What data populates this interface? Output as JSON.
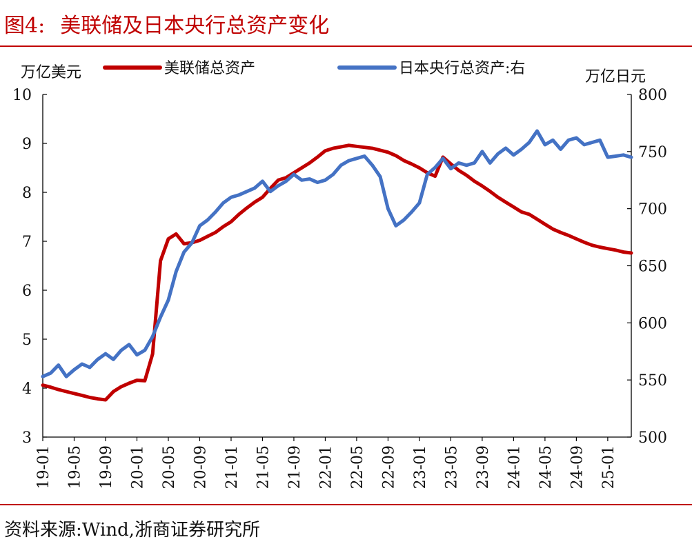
{
  "header": {
    "figure_label": "图4:",
    "title": "美联储及日本央行总资产变化"
  },
  "source": "资料来源:Wind,浙商证券研究所",
  "chart_data": {
    "type": "line",
    "y_left": {
      "label": "万亿美元",
      "range": [
        3,
        10
      ],
      "ticks": [
        "3",
        "4",
        "5",
        "6",
        "7",
        "8",
        "9",
        "10"
      ]
    },
    "y_right": {
      "label": "万亿日元",
      "range": [
        500,
        800
      ],
      "ticks": [
        "500",
        "550",
        "600",
        "650",
        "700",
        "750",
        "800"
      ]
    },
    "x_ticks": [
      "19-01",
      "19-05",
      "19-09",
      "20-01",
      "20-05",
      "20-09",
      "21-01",
      "21-05",
      "21-09",
      "22-01",
      "22-05",
      "22-09",
      "23-01",
      "23-05",
      "23-09",
      "24-01",
      "24-05",
      "24-09",
      "25-01"
    ],
    "x_range": [
      "2019-01",
      "2025-04"
    ],
    "legend_position": "top",
    "series": [
      {
        "name": "美联储总资产",
        "axis": "left",
        "color": "#c00000",
        "points": [
          [
            "2019-01",
            4.06
          ],
          [
            "2019-02",
            4.02
          ],
          [
            "2019-03",
            3.97
          ],
          [
            "2019-04",
            3.93
          ],
          [
            "2019-05",
            3.89
          ],
          [
            "2019-06",
            3.85
          ],
          [
            "2019-07",
            3.81
          ],
          [
            "2019-08",
            3.78
          ],
          [
            "2019-09",
            3.76
          ],
          [
            "2019-10",
            3.93
          ],
          [
            "2019-11",
            4.03
          ],
          [
            "2019-12",
            4.1
          ],
          [
            "2020-01",
            4.16
          ],
          [
            "2020-02",
            4.15
          ],
          [
            "2020-03",
            4.7
          ],
          [
            "2020-04",
            6.6
          ],
          [
            "2020-05",
            7.05
          ],
          [
            "2020-06",
            7.15
          ],
          [
            "2020-07",
            6.95
          ],
          [
            "2020-08",
            6.97
          ],
          [
            "2020-09",
            7.02
          ],
          [
            "2020-10",
            7.1
          ],
          [
            "2020-11",
            7.18
          ],
          [
            "2020-12",
            7.3
          ],
          [
            "2021-01",
            7.4
          ],
          [
            "2021-02",
            7.55
          ],
          [
            "2021-03",
            7.68
          ],
          [
            "2021-04",
            7.8
          ],
          [
            "2021-05",
            7.9
          ],
          [
            "2021-06",
            8.08
          ],
          [
            "2021-07",
            8.25
          ],
          [
            "2021-08",
            8.3
          ],
          [
            "2021-09",
            8.4
          ],
          [
            "2021-10",
            8.5
          ],
          [
            "2021-11",
            8.6
          ],
          [
            "2021-12",
            8.72
          ],
          [
            "2022-01",
            8.85
          ],
          [
            "2022-02",
            8.9
          ],
          [
            "2022-03",
            8.93
          ],
          [
            "2022-04",
            8.96
          ],
          [
            "2022-05",
            8.94
          ],
          [
            "2022-06",
            8.92
          ],
          [
            "2022-07",
            8.9
          ],
          [
            "2022-08",
            8.86
          ],
          [
            "2022-09",
            8.82
          ],
          [
            "2022-10",
            8.75
          ],
          [
            "2022-11",
            8.65
          ],
          [
            "2022-12",
            8.58
          ],
          [
            "2023-01",
            8.5
          ],
          [
            "2023-02",
            8.4
          ],
          [
            "2023-03",
            8.33
          ],
          [
            "2023-04",
            8.72
          ],
          [
            "2023-05",
            8.58
          ],
          [
            "2023-06",
            8.45
          ],
          [
            "2023-07",
            8.35
          ],
          [
            "2023-08",
            8.23
          ],
          [
            "2023-09",
            8.13
          ],
          [
            "2023-10",
            8.02
          ],
          [
            "2023-11",
            7.9
          ],
          [
            "2023-12",
            7.8
          ],
          [
            "2024-01",
            7.7
          ],
          [
            "2024-02",
            7.6
          ],
          [
            "2024-03",
            7.55
          ],
          [
            "2024-04",
            7.45
          ],
          [
            "2024-05",
            7.35
          ],
          [
            "2024-06",
            7.25
          ],
          [
            "2024-07",
            7.18
          ],
          [
            "2024-08",
            7.12
          ],
          [
            "2024-09",
            7.05
          ],
          [
            "2024-10",
            6.98
          ],
          [
            "2024-11",
            6.92
          ],
          [
            "2024-12",
            6.88
          ],
          [
            "2025-01",
            6.85
          ],
          [
            "2025-02",
            6.82
          ],
          [
            "2025-03",
            6.78
          ],
          [
            "2025-04",
            6.76
          ]
        ]
      },
      {
        "name": "日本央行总资产:右",
        "axis": "right",
        "color": "#4472c4",
        "points": [
          [
            "2019-01",
            553
          ],
          [
            "2019-02",
            556
          ],
          [
            "2019-03",
            563
          ],
          [
            "2019-04",
            553
          ],
          [
            "2019-05",
            559
          ],
          [
            "2019-06",
            564
          ],
          [
            "2019-07",
            561
          ],
          [
            "2019-08",
            568
          ],
          [
            "2019-09",
            573
          ],
          [
            "2019-10",
            568
          ],
          [
            "2019-11",
            576
          ],
          [
            "2019-12",
            581
          ],
          [
            "2020-01",
            572
          ],
          [
            "2020-02",
            576
          ],
          [
            "2020-03",
            588
          ],
          [
            "2020-04",
            605
          ],
          [
            "2020-05",
            620
          ],
          [
            "2020-06",
            645
          ],
          [
            "2020-07",
            662
          ],
          [
            "2020-08",
            670
          ],
          [
            "2020-09",
            685
          ],
          [
            "2020-10",
            690
          ],
          [
            "2020-11",
            697
          ],
          [
            "2020-12",
            705
          ],
          [
            "2021-01",
            710
          ],
          [
            "2021-02",
            712
          ],
          [
            "2021-03",
            715
          ],
          [
            "2021-04",
            718
          ],
          [
            "2021-05",
            724
          ],
          [
            "2021-06",
            715
          ],
          [
            "2021-07",
            720
          ],
          [
            "2021-08",
            724
          ],
          [
            "2021-09",
            730
          ],
          [
            "2021-10",
            725
          ],
          [
            "2021-11",
            726
          ],
          [
            "2021-12",
            723
          ],
          [
            "2022-01",
            725
          ],
          [
            "2022-02",
            730
          ],
          [
            "2022-03",
            738
          ],
          [
            "2022-04",
            742
          ],
          [
            "2022-05",
            744
          ],
          [
            "2022-06",
            746
          ],
          [
            "2022-07",
            738
          ],
          [
            "2022-08",
            728
          ],
          [
            "2022-09",
            700
          ],
          [
            "2022-10",
            685
          ],
          [
            "2022-11",
            690
          ],
          [
            "2022-12",
            697
          ],
          [
            "2023-01",
            705
          ],
          [
            "2023-02",
            730
          ],
          [
            "2023-03",
            736
          ],
          [
            "2023-04",
            744
          ],
          [
            "2023-05",
            735
          ],
          [
            "2023-06",
            740
          ],
          [
            "2023-07",
            738
          ],
          [
            "2023-08",
            740
          ],
          [
            "2023-09",
            750
          ],
          [
            "2023-10",
            740
          ],
          [
            "2023-11",
            748
          ],
          [
            "2023-12",
            753
          ],
          [
            "2024-01",
            747
          ],
          [
            "2024-02",
            752
          ],
          [
            "2024-03",
            758
          ],
          [
            "2024-04",
            768
          ],
          [
            "2024-05",
            756
          ],
          [
            "2024-06",
            760
          ],
          [
            "2024-07",
            752
          ],
          [
            "2024-08",
            760
          ],
          [
            "2024-09",
            762
          ],
          [
            "2024-10",
            756
          ],
          [
            "2024-11",
            758
          ],
          [
            "2024-12",
            760
          ],
          [
            "2025-01",
            745
          ],
          [
            "2025-02",
            746
          ],
          [
            "2025-03",
            747
          ],
          [
            "2025-04",
            745
          ]
        ]
      }
    ]
  }
}
